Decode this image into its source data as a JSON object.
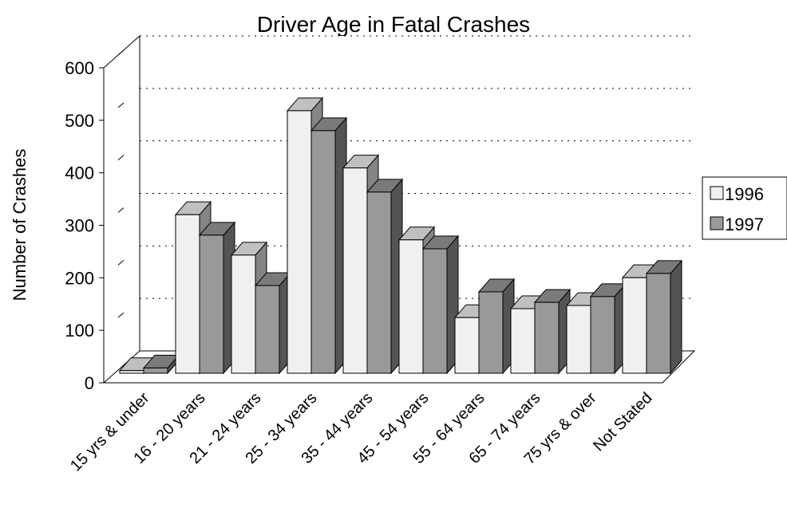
{
  "chart_data": {
    "type": "bar3d",
    "title": "Driver Age in Fatal Crashes",
    "y_label": "Number of Crashes",
    "categories": [
      "15 yrs & under",
      "16 - 20 years",
      "21 - 24 years",
      "25 - 34 years",
      "35 - 44 years",
      "45 - 54 years",
      "55 - 64 years",
      "65 - 74 years",
      "75 yrs & over",
      "Not Stated"
    ],
    "series": [
      {
        "name": "1996",
        "color": "#f0f0f0",
        "values": [
          5,
          302,
          225,
          500,
          391,
          254,
          106,
          123,
          129,
          182
        ]
      },
      {
        "name": "1997",
        "color": "#999999",
        "values": [
          10,
          263,
          167,
          462,
          345,
          237,
          155,
          135,
          146,
          190
        ]
      }
    ],
    "ylim": [
      0,
      600
    ],
    "yticks": [
      0,
      100,
      200,
      300,
      400,
      500,
      600
    ],
    "grid": true,
    "legend": "right"
  }
}
